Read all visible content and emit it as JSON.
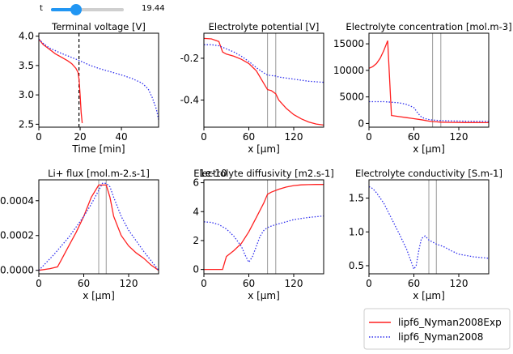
{
  "slider": {
    "label": "t",
    "value_text": "19.44",
    "fraction": 0.34
  },
  "legend": {
    "items": [
      "lipf6_Nyman2008Exp",
      "lipf6_Nyman2008"
    ]
  },
  "colors": {
    "exp": "#ff2020",
    "nyman": "#3030ee"
  },
  "chart_data": [
    {
      "type": "line",
      "title": "Terminal voltage [V]",
      "xlabel": "Time [min]",
      "ylabel": "",
      "xlim": [
        0,
        58
      ],
      "ylim": [
        2.45,
        4.05
      ],
      "xticks": [
        0,
        20,
        40
      ],
      "yticks": [
        2.5,
        3.0,
        3.5,
        4.0
      ],
      "xtick_labels": [
        "0",
        "20",
        "40"
      ],
      "ytick_labels": [
        "2.5",
        "3.0",
        "3.5",
        "4.0"
      ],
      "marker_x": 19.44,
      "series": [
        {
          "name": "lipf6_Nyman2008Exp",
          "style": "solid",
          "x": [
            0,
            2,
            5,
            8,
            11,
            14,
            16,
            18,
            19,
            19.5,
            20,
            20.5,
            21
          ],
          "y": [
            3.95,
            3.86,
            3.78,
            3.7,
            3.64,
            3.58,
            3.53,
            3.45,
            3.38,
            3.25,
            3.0,
            2.7,
            2.52
          ]
        },
        {
          "name": "lipf6_Nyman2008",
          "style": "dotted",
          "x": [
            0,
            2,
            5,
            10,
            15,
            20,
            25,
            30,
            35,
            40,
            45,
            50,
            53,
            55,
            57,
            58
          ],
          "y": [
            3.95,
            3.88,
            3.8,
            3.72,
            3.65,
            3.58,
            3.5,
            3.44,
            3.39,
            3.34,
            3.28,
            3.2,
            3.1,
            2.95,
            2.75,
            2.58
          ]
        }
      ]
    },
    {
      "type": "line",
      "title": "Electrolyte potential [V]",
      "xlabel": "x [μm]",
      "ylabel": "",
      "xlim": [
        0,
        160
      ],
      "ylim": [
        -0.53,
        -0.08
      ],
      "xticks": [
        0,
        60,
        120
      ],
      "yticks": [
        -0.2,
        -0.4
      ],
      "xtick_labels": [
        "0",
        "60",
        "120"
      ],
      "ytick_labels": [
        "-0.2",
        "-0.4"
      ],
      "separators": [
        85,
        96
      ],
      "series": [
        {
          "name": "lipf6_Nyman2008Exp",
          "style": "solid",
          "x": [
            0,
            10,
            20,
            25,
            30,
            40,
            50,
            60,
            70,
            80,
            85,
            90,
            96,
            100,
            110,
            120,
            130,
            140,
            150,
            160
          ],
          "y": [
            -0.105,
            -0.107,
            -0.12,
            -0.17,
            -0.18,
            -0.19,
            -0.205,
            -0.225,
            -0.26,
            -0.32,
            -0.35,
            -0.355,
            -0.37,
            -0.4,
            -0.44,
            -0.47,
            -0.49,
            -0.505,
            -0.515,
            -0.52
          ]
        },
        {
          "name": "lipf6_Nyman2008",
          "style": "dotted",
          "x": [
            0,
            10,
            20,
            30,
            40,
            50,
            60,
            70,
            80,
            85,
            90,
            96,
            100,
            120,
            140,
            160
          ],
          "y": [
            -0.135,
            -0.135,
            -0.14,
            -0.155,
            -0.17,
            -0.19,
            -0.215,
            -0.245,
            -0.27,
            -0.28,
            -0.283,
            -0.285,
            -0.29,
            -0.3,
            -0.31,
            -0.315
          ]
        }
      ]
    },
    {
      "type": "line",
      "title": "Electrolyte concentration [mol.m-3]",
      "xlabel": "x [μm]",
      "ylabel": "",
      "xlim": [
        0,
        160
      ],
      "ylim": [
        -700,
        17000
      ],
      "xticks": [
        0,
        60,
        120
      ],
      "yticks": [
        0,
        5000,
        10000,
        15000
      ],
      "xtick_labels": [
        "0",
        "60",
        "120"
      ],
      "ytick_labels": [
        "0",
        "5000",
        "10000",
        "15000"
      ],
      "separators": [
        85,
        96
      ],
      "series": [
        {
          "name": "lipf6_Nyman2008Exp",
          "style": "solid",
          "x": [
            0,
            5,
            10,
            15,
            20,
            25,
            30,
            40,
            50,
            60,
            70,
            80,
            85,
            90,
            96,
            110,
            130,
            160
          ],
          "y": [
            10400,
            10700,
            11300,
            12300,
            13800,
            15600,
            1500,
            1300,
            1100,
            900,
            700,
            450,
            350,
            300,
            250,
            200,
            170,
            150
          ]
        },
        {
          "name": "lipf6_Nyman2008",
          "style": "dotted",
          "x": [
            0,
            20,
            40,
            50,
            60,
            65,
            70,
            75,
            80,
            85,
            90,
            96,
            110,
            130,
            160
          ],
          "y": [
            4100,
            4100,
            3900,
            3600,
            3000,
            2000,
            1200,
            900,
            750,
            650,
            600,
            550,
            480,
            430,
            400
          ]
        }
      ]
    },
    {
      "type": "line",
      "title": "Li+ flux [mol.m-2.s-1]",
      "xlabel": "x [μm]",
      "ylabel": "",
      "xlim": [
        0,
        160
      ],
      "ylim": [
        -2e-05,
        0.00052
      ],
      "xticks": [
        0,
        60,
        120
      ],
      "yticks": [
        0,
        0.0002,
        0.0004
      ],
      "xtick_labels": [
        "0",
        "60",
        "120"
      ],
      "ytick_labels": [
        "0.0000",
        "0.0002",
        "0.0004"
      ],
      "separators": [
        80,
        90
      ],
      "series": [
        {
          "name": "lipf6_Nyman2008Exp",
          "style": "solid",
          "x": [
            0,
            15,
            25,
            30,
            40,
            50,
            60,
            70,
            80,
            85,
            90,
            95,
            100,
            110,
            120,
            130,
            140,
            150,
            160
          ],
          "y": [
            0.0,
            1e-05,
            2e-05,
            6e-05,
            0.00014,
            0.00022,
            0.00031,
            0.00042,
            0.00049,
            0.00049,
            0.00049,
            0.00042,
            0.00031,
            0.0002,
            0.00014,
            0.0001,
            7e-05,
            3e-05,
            0.0
          ]
        },
        {
          "name": "lipf6_Nyman2008",
          "style": "dotted",
          "x": [
            0,
            20,
            40,
            60,
            70,
            80,
            85,
            90,
            95,
            100,
            110,
            120,
            140,
            160
          ],
          "y": [
            0.0,
            9e-05,
            0.00019,
            0.00031,
            0.00038,
            0.00046,
            0.0005,
            0.0005,
            0.00048,
            0.00042,
            0.00031,
            0.00023,
            0.00011,
            0.0
          ]
        }
      ]
    },
    {
      "type": "line",
      "title": "Electrolyte diffusivity [m2.s-1]",
      "xlabel": "x [μm]",
      "ylabel": "",
      "offset_text": "1e-10",
      "xlim": [
        0,
        160
      ],
      "ylim": [
        -0.3,
        6.2
      ],
      "xticks": [
        0,
        60,
        120
      ],
      "yticks": [
        0,
        2,
        4,
        6
      ],
      "xtick_labels": [
        "0",
        "60",
        "120"
      ],
      "ytick_labels": [
        "0",
        "2",
        "4",
        "6"
      ],
      "separators": [
        85,
        96
      ],
      "series": [
        {
          "name": "lipf6_Nyman2008Exp",
          "style": "solid",
          "x": [
            0,
            10,
            25,
            30,
            40,
            50,
            60,
            70,
            80,
            85,
            90,
            100,
            110,
            120,
            130,
            140,
            150,
            160
          ],
          "y": [
            0.0,
            0.0,
            0.0,
            0.9,
            1.3,
            1.8,
            2.6,
            3.6,
            4.6,
            5.2,
            5.35,
            5.55,
            5.7,
            5.8,
            5.85,
            5.87,
            5.88,
            5.88
          ]
        },
        {
          "name": "lipf6_Nyman2008",
          "style": "dotted",
          "x": [
            0,
            10,
            20,
            30,
            40,
            50,
            55,
            60,
            65,
            70,
            75,
            80,
            85,
            90,
            96,
            110,
            120,
            140,
            160
          ],
          "y": [
            3.3,
            3.25,
            3.1,
            2.8,
            2.3,
            1.6,
            1.0,
            0.5,
            0.9,
            1.6,
            2.3,
            2.7,
            2.9,
            3.0,
            3.1,
            3.3,
            3.45,
            3.6,
            3.7
          ]
        }
      ]
    },
    {
      "type": "line",
      "title": "Electrolyte conductivity [S.m-1]",
      "xlabel": "x [μm]",
      "ylabel": "",
      "xlim": [
        0,
        160
      ],
      "ylim": [
        0.38,
        1.77
      ],
      "xticks": [
        0,
        60,
        120
      ],
      "yticks": [
        0.5,
        1.0,
        1.5
      ],
      "xtick_labels": [
        "0",
        "60",
        "120"
      ],
      "ytick_labels": [
        "0.5",
        "1.0",
        "1.5"
      ],
      "separators": [
        80,
        90
      ],
      "series": [
        {
          "name": "lipf6_Nyman2008",
          "style": "dotted",
          "x": [
            0,
            5,
            10,
            20,
            30,
            40,
            50,
            55,
            60,
            63,
            67,
            70,
            75,
            80,
            90,
            100,
            110,
            120,
            140,
            160
          ],
          "y": [
            1.67,
            1.64,
            1.58,
            1.42,
            1.2,
            0.98,
            0.75,
            0.6,
            0.45,
            0.5,
            0.75,
            0.9,
            0.94,
            0.88,
            0.82,
            0.78,
            0.72,
            0.67,
            0.63,
            0.61
          ]
        }
      ]
    }
  ]
}
